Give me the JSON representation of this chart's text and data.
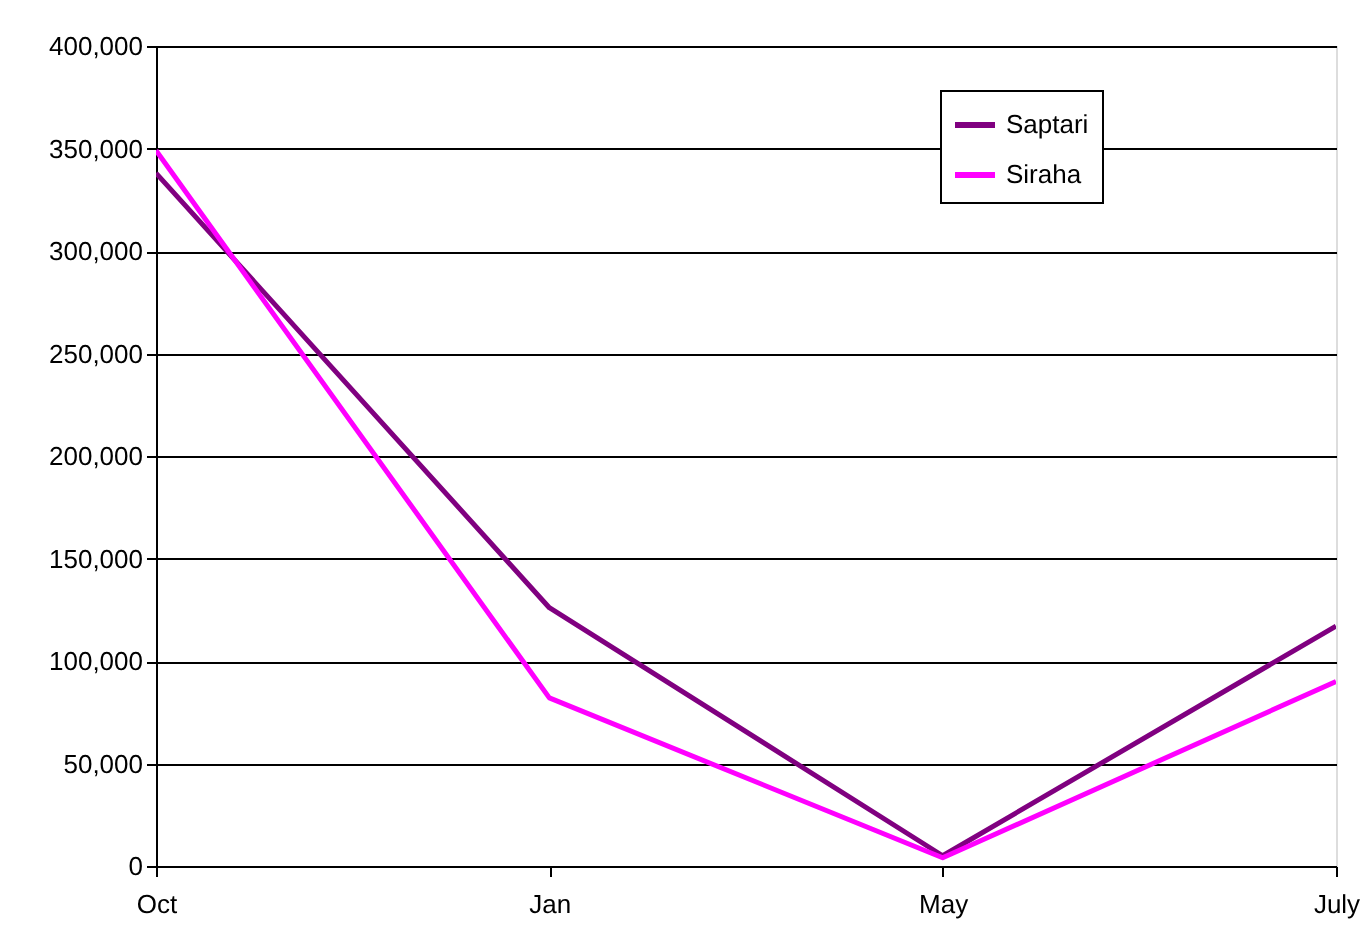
{
  "chart_data": {
    "type": "line",
    "categories": [
      "Oct",
      "Jan",
      "May",
      "July"
    ],
    "series": [
      {
        "name": "Saptari",
        "color": "#800080",
        "values": [
          338000,
          126000,
          5000,
          117000
        ]
      },
      {
        "name": "Siraha",
        "color": "#ff00ff",
        "values": [
          349000,
          82000,
          4000,
          90000
        ]
      }
    ],
    "ylim": [
      0,
      400000
    ],
    "yticks": [
      0,
      {
        "value": 50000,
        "label": "50,000"
      },
      {
        "value": 100000,
        "label": "100,000"
      },
      {
        "value": 150000,
        "label": "150,000"
      },
      {
        "value": 200000,
        "label": "200,000"
      },
      {
        "value": 250000,
        "label": "250,000"
      },
      {
        "value": 300000,
        "label": "300,000"
      },
      {
        "value": 350000,
        "label": "350,000"
      },
      {
        "value": 400000,
        "label": "400,000"
      }
    ],
    "grid": "y",
    "legend": "top right",
    "marker": "none",
    "line_style": "solid"
  }
}
